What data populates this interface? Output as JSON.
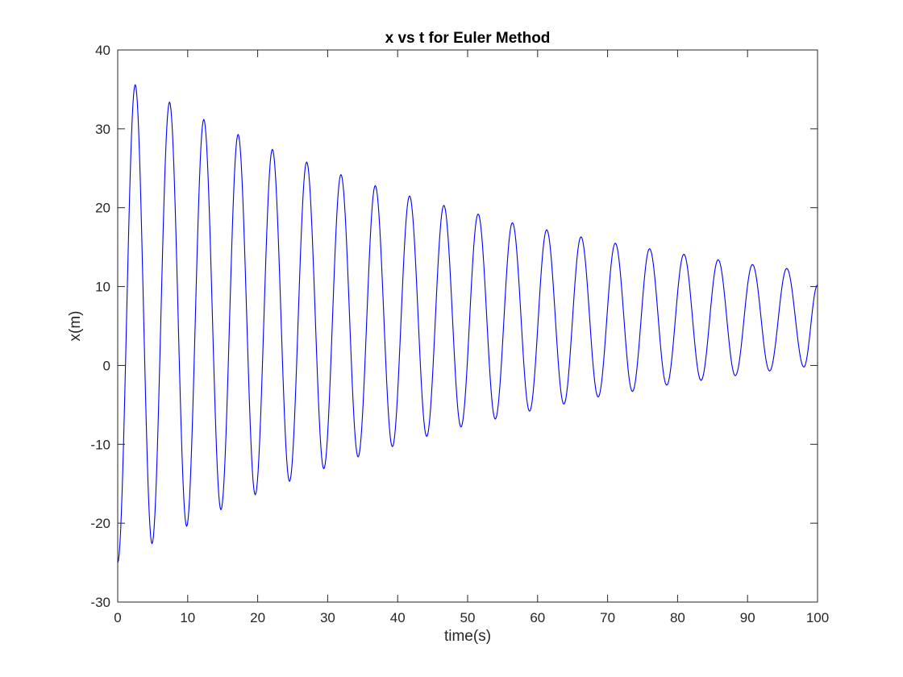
{
  "chart_data": {
    "type": "line",
    "title": "x vs t for Euler Method",
    "xlabel": "time(s)",
    "ylabel": "x(m)",
    "xlim": [
      0,
      100
    ],
    "ylim": [
      -30,
      40
    ],
    "xticks": [
      0,
      10,
      20,
      30,
      40,
      50,
      60,
      70,
      80,
      90,
      100
    ],
    "yticks": [
      -30,
      -20,
      -10,
      0,
      10,
      20,
      30,
      40
    ],
    "grid": false,
    "line_color": "#0000ff",
    "series": [
      {
        "x": [
          0,
          2.5,
          4.9,
          7.4,
          9.85,
          12.3,
          14.75,
          17.2,
          19.65,
          22.1,
          24.55,
          27.0,
          29.45,
          31.9,
          34.35,
          36.8,
          39.25,
          41.7,
          44.15,
          46.6,
          49.05,
          51.5,
          53.95,
          56.4,
          58.85,
          61.3,
          63.75,
          66.2,
          68.65,
          71.1,
          73.55,
          76.0,
          78.45,
          80.9,
          83.35,
          85.8,
          88.25,
          90.7,
          93.15,
          95.6,
          98.05,
          100
        ],
        "y": [
          -25.0,
          35.6,
          -22.6,
          33.4,
          -20.4,
          31.2,
          -18.3,
          29.3,
          -16.4,
          27.4,
          -14.7,
          25.8,
          -13.1,
          24.2,
          -11.6,
          22.8,
          -10.3,
          21.5,
          -9.0,
          20.3,
          -7.8,
          19.2,
          -6.8,
          18.1,
          -5.8,
          17.2,
          -4.9,
          16.3,
          -4.0,
          15.5,
          -3.3,
          14.8,
          -2.5,
          14.1,
          -1.9,
          13.4,
          -1.3,
          12.8,
          -0.7,
          12.3,
          -0.2,
          10.2
        ]
      }
    ]
  }
}
